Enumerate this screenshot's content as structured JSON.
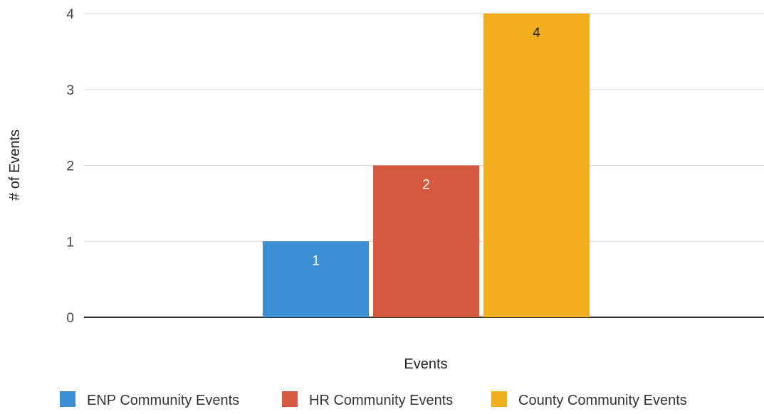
{
  "chart_data": {
    "type": "bar",
    "title": "",
    "xlabel": "Events",
    "ylabel": "# of Events",
    "ylim": [
      0,
      4
    ],
    "yticks": [
      "0",
      "1",
      "2",
      "3",
      "4"
    ],
    "grid": true,
    "legend_position": "bottom",
    "categories": [
      ""
    ],
    "series": [
      {
        "name": "ENP Community Events",
        "values": [
          1
        ],
        "color": "#3d8fd4",
        "label_color": "#ffffff"
      },
      {
        "name": "HR Community Events",
        "values": [
          2
        ],
        "color": "#d45a3f",
        "label_color": "#ffffff"
      },
      {
        "name": "County Community Events",
        "values": [
          4
        ],
        "color": "#f2ad1c",
        "label_color": "#222222"
      }
    ]
  }
}
